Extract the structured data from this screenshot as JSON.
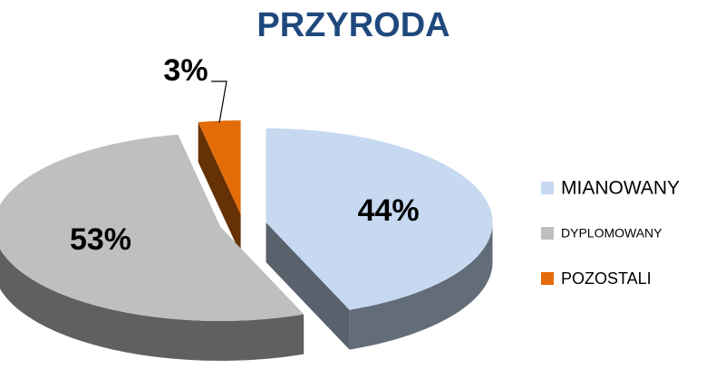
{
  "chart_data": {
    "type": "pie3d",
    "title": "PRZYRODA",
    "categories": [
      "MIANOWANY",
      "DYPLOMOWANY",
      "POZOSTALI"
    ],
    "values": [
      44,
      53,
      3
    ],
    "value_labels": [
      "44%",
      "53%",
      "3%"
    ],
    "colors": [
      "#c6d9f1",
      "#bfbfbf",
      "#e36c09"
    ],
    "legend": "right"
  }
}
